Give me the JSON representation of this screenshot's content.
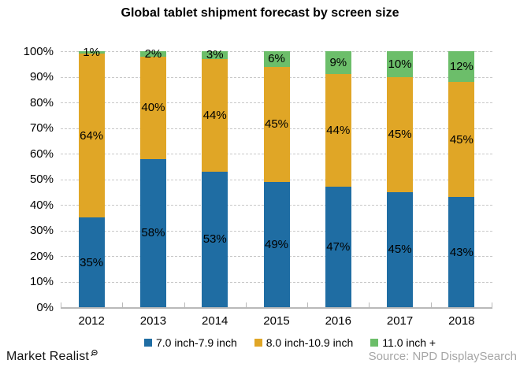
{
  "title": "Global tablet shipment forecast by screen size",
  "chart_data": {
    "type": "bar",
    "stacked": true,
    "orientation": "vertical",
    "categories": [
      "2012",
      "2013",
      "2014",
      "2015",
      "2016",
      "2017",
      "2018"
    ],
    "series": [
      {
        "name": "7.0 inch-7.9 inch",
        "color": "#1f6da3",
        "values": [
          35,
          58,
          53,
          49,
          47,
          45,
          43
        ]
      },
      {
        "name": "8.0 inch-10.9 inch",
        "color": "#e0a626",
        "values": [
          64,
          40,
          44,
          45,
          44,
          45,
          45
        ]
      },
      {
        "name": "11.0 inch +",
        "color": "#6cbe6a",
        "values": [
          1,
          2,
          3,
          6,
          9,
          10,
          12
        ]
      }
    ],
    "title": "Global tablet shipment forecast by screen size",
    "xlabel": "",
    "ylabel": "",
    "ylim": [
      0,
      100
    ],
    "y_ticks": [
      "0%",
      "10%",
      "20%",
      "30%",
      "40%",
      "50%",
      "60%",
      "70%",
      "80%",
      "90%",
      "100%"
    ],
    "grid": "horizontal dashed",
    "legend_position": "bottom",
    "data_labels": "percent shown on every segment"
  },
  "footer": {
    "brand": "Market Realist",
    "source": "Source: NPD DisplaySearch"
  },
  "colors": {
    "grid": "#c8c8c8",
    "axis": "#b9b9b9",
    "bar_label": "#000000",
    "source_text": "#a6a6a6"
  }
}
